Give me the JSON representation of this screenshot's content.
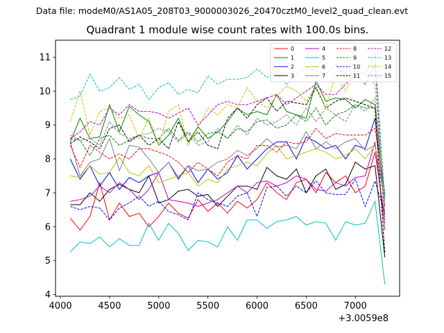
{
  "suptitle": "Data file: modeM0/AS1A05_208T03_9000003026_20470cztM0_level2_quad_clean.evt",
  "chart_data": {
    "type": "line",
    "title": "Quadrant 1 module wise count rates with 100.0s bins.",
    "xlabel": "",
    "ylabel": "",
    "x_offset_label": "+3.0059e8",
    "xlim": [
      3950,
      7450
    ],
    "ylim": [
      3.95,
      11.5
    ],
    "xticks": [
      4000,
      4500,
      5000,
      5500,
      6000,
      6500,
      7000
    ],
    "yticks": [
      4,
      5,
      6,
      7,
      8,
      9,
      10,
      11
    ],
    "legend_position": "top-right",
    "x": [
      4100,
      4200,
      4300,
      4400,
      4500,
      4600,
      4700,
      4800,
      4900,
      5000,
      5100,
      5200,
      5300,
      5400,
      5500,
      5600,
      5700,
      5800,
      5900,
      6000,
      6100,
      6200,
      6300,
      6400,
      6500,
      6600,
      6700,
      6800,
      6900,
      7000,
      7100,
      7200,
      7300
    ],
    "series": [
      {
        "name": "0",
        "color": "#ff0000",
        "dash": false,
        "values": [
          6.25,
          5.9,
          6.3,
          7.3,
          6.2,
          6.7,
          6.3,
          6.4,
          6.0,
          6.3,
          6.7,
          6.4,
          6.25,
          6.8,
          6.45,
          6.7,
          6.4,
          6.75,
          6.55,
          6.8,
          7.3,
          7.0,
          6.8,
          7.3,
          7.4,
          7.0,
          7.6,
          7.3,
          7.5,
          7.0,
          7.2,
          8.2,
          6.2
        ]
      },
      {
        "name": "1",
        "color": "#008000",
        "dash": false,
        "values": [
          8.5,
          9.2,
          8.6,
          8.65,
          9.6,
          8.8,
          9.55,
          9.3,
          9.1,
          8.4,
          8.7,
          9.2,
          8.5,
          8.95,
          8.6,
          8.8,
          9.1,
          9.5,
          9.3,
          9.4,
          9.3,
          9.9,
          9.4,
          9.3,
          9.2,
          10.3,
          9.7,
          9.8,
          9.75,
          9.5,
          9.75,
          9.6,
          6.9
        ]
      },
      {
        "name": "2",
        "color": "#0000ff",
        "dash": false,
        "values": [
          8.0,
          7.4,
          7.8,
          7.2,
          7.6,
          7.1,
          7.45,
          7.3,
          7.5,
          7.6,
          7.9,
          7.4,
          7.8,
          7.3,
          7.7,
          7.4,
          7.6,
          8.1,
          7.7,
          8.0,
          8.3,
          8.5,
          8.5,
          8.0,
          8.65,
          8.5,
          8.3,
          8.4,
          8.0,
          8.4,
          8.3,
          9.2,
          6.6
        ]
      },
      {
        "name": "3",
        "color": "#000000",
        "dash": false,
        "values": [
          6.65,
          6.65,
          7.0,
          6.75,
          7.1,
          7.25,
          7.1,
          7.0,
          7.5,
          6.7,
          6.8,
          7.05,
          7.1,
          6.9,
          6.95,
          6.6,
          6.9,
          7.2,
          7.2,
          7.1,
          7.75,
          7.5,
          7.4,
          7.7,
          7.0,
          7.5,
          7.7,
          7.1,
          7.25,
          7.9,
          7.7,
          7.8,
          5.1
        ]
      },
      {
        "name": "4",
        "color": "#bf00bf",
        "dash": false,
        "values": [
          6.75,
          6.8,
          6.9,
          7.2,
          7.0,
          7.3,
          7.1,
          6.8,
          7.1,
          7.6,
          6.8,
          6.75,
          6.7,
          6.6,
          6.7,
          6.8,
          7.0,
          7.2,
          7.0,
          7.3,
          7.35,
          7.2,
          7.3,
          7.5,
          7.4,
          7.1,
          7.05,
          7.3,
          7.2,
          7.45,
          7.5,
          8.5,
          5.9
        ]
      },
      {
        "name": "5",
        "color": "#00bfbf",
        "dash": false,
        "values": [
          5.25,
          5.55,
          5.5,
          5.7,
          5.4,
          5.65,
          5.45,
          5.45,
          6.1,
          5.6,
          6.1,
          5.8,
          5.3,
          5.6,
          5.55,
          5.4,
          6.0,
          5.6,
          6.2,
          6.2,
          5.95,
          6.15,
          6.2,
          6.3,
          6.05,
          6.15,
          6.1,
          5.6,
          6.15,
          6.05,
          6.1,
          6.75,
          4.3
        ]
      },
      {
        "name": "6",
        "color": "#bfbf00",
        "dash": false,
        "values": [
          7.5,
          7.45,
          7.8,
          7.55,
          7.6,
          8.05,
          7.6,
          7.5,
          7.8,
          7.3,
          7.4,
          7.5,
          7.6,
          7.2,
          7.4,
          7.3,
          7.7,
          7.8,
          7.9,
          7.8,
          8.15,
          8.4,
          8.0,
          8.1,
          8.2,
          8.3,
          8.2,
          8.0,
          8.1,
          8.3,
          8.0,
          8.4,
          6.8
        ]
      },
      {
        "name": "7",
        "color": "#808080",
        "dash": false,
        "values": [
          8.5,
          7.5,
          7.9,
          8.0,
          8.6,
          7.65,
          8.4,
          8.35,
          8.0,
          7.6,
          7.9,
          7.45,
          7.8,
          7.65,
          7.7,
          7.9,
          8.0,
          8.25,
          8.1,
          8.3,
          8.6,
          8.35,
          8.4,
          8.3,
          8.8,
          8.3,
          8.5,
          8.3,
          8.5,
          8.6,
          8.25,
          8.4,
          6.8
        ]
      },
      {
        "name": "8",
        "color": "#ff0000",
        "dash": true,
        "values": [
          8.4,
          7.75,
          8.4,
          8.2,
          8.0,
          8.15,
          8.0,
          8.3,
          8.3,
          8.2,
          8.1,
          7.9,
          7.6,
          7.9,
          7.7,
          7.5,
          7.9,
          8.1,
          8.0,
          8.4,
          8.4,
          8.2,
          8.5,
          8.45,
          8.5,
          8.9,
          8.6,
          8.75,
          8.7,
          8.7,
          8.7,
          8.9,
          7.0
        ]
      },
      {
        "name": "9",
        "color": "#008000",
        "dash": true,
        "values": [
          8.6,
          8.55,
          8.1,
          8.6,
          8.7,
          8.4,
          8.55,
          8.7,
          8.6,
          8.6,
          8.9,
          8.55,
          8.8,
          8.5,
          8.75,
          8.8,
          8.6,
          8.9,
          8.8,
          9.1,
          9.15,
          8.9,
          9.0,
          9.3,
          9.1,
          9.5,
          9.0,
          9.3,
          9.4,
          9.6,
          9.5,
          9.5,
          6.9
        ]
      },
      {
        "name": "10",
        "color": "#0000ff",
        "dash": true,
        "values": [
          6.6,
          6.5,
          6.6,
          6.55,
          6.2,
          6.55,
          6.7,
          6.9,
          6.6,
          6.75,
          6.45,
          6.35,
          6.2,
          7.0,
          6.8,
          6.7,
          6.6,
          6.9,
          7.0,
          6.3,
          7.15,
          7.2,
          6.9,
          7.2,
          7.0,
          7.35,
          7.0,
          6.95,
          6.95,
          7.4,
          6.6,
          7.35,
          6.4
        ]
      },
      {
        "name": "11",
        "color": "#000000",
        "dash": true,
        "values": [
          8.45,
          8.65,
          8.5,
          8.3,
          8.9,
          9.0,
          8.5,
          8.7,
          8.4,
          8.6,
          8.3,
          9.1,
          8.5,
          8.8,
          8.4,
          8.3,
          9.2,
          9.5,
          9.2,
          9.6,
          9.8,
          9.4,
          9.7,
          9.65,
          9.6,
          10.1,
          9.5,
          9.7,
          9.8,
          9.7,
          9.6,
          9.5,
          5.2
        ]
      },
      {
        "name": "12",
        "color": "#bf00bf",
        "dash": true,
        "values": [
          8.6,
          8.8,
          9.1,
          9.0,
          9.5,
          9.3,
          9.6,
          9.4,
          9.4,
          9.35,
          9.2,
          9.35,
          9.5,
          9.0,
          9.3,
          9.6,
          9.7,
          9.6,
          9.6,
          9.7,
          9.8,
          9.9,
          9.6,
          9.8,
          10.0,
          10.2,
          9.9,
          9.9,
          10.2,
          10.5,
          10.2,
          10.8,
          6.3
        ]
      },
      {
        "name": "13",
        "color": "#00bfbf",
        "dash": true,
        "values": [
          9.75,
          9.85,
          10.5,
          10.0,
          10.1,
          10.4,
          10.05,
          10.2,
          9.75,
          10.1,
          10.25,
          9.9,
          10.05,
          9.95,
          10.45,
          10.2,
          10.35,
          10.35,
          10.4,
          10.65,
          10.4,
          10.55,
          10.2,
          10.5,
          10.7,
          10.6,
          10.5,
          10.8,
          10.4,
          10.6,
          10.5,
          11.1,
          6.8
        ]
      },
      {
        "name": "14",
        "color": "#bfbf00",
        "dash": true,
        "values": [
          9.1,
          10.0,
          8.7,
          9.4,
          9.5,
          9.2,
          9.3,
          8.6,
          9.2,
          8.4,
          9.4,
          9.6,
          8.4,
          8.9,
          9.5,
          9.3,
          9.6,
          9.5,
          10.1,
          9.7,
          9.5,
          9.85,
          10.15,
          10.0,
          9.7,
          10.15,
          9.5,
          10.5,
          10.0,
          10.6,
          10.5,
          10.2,
          6.5
        ]
      },
      {
        "name": "15",
        "color": "#808080",
        "dash": true,
        "values": [
          8.7,
          8.55,
          8.6,
          8.4,
          9.1,
          8.75,
          8.6,
          8.7,
          8.75,
          8.9,
          8.8,
          8.5,
          8.75,
          8.4,
          8.5,
          8.9,
          8.6,
          9.0,
          8.7,
          9.2,
          9.0,
          9.1,
          9.3,
          9.0,
          9.5,
          9.1,
          9.5,
          9.3,
          9.1,
          9.6,
          9.4,
          9.8,
          6.1
        ]
      }
    ]
  }
}
